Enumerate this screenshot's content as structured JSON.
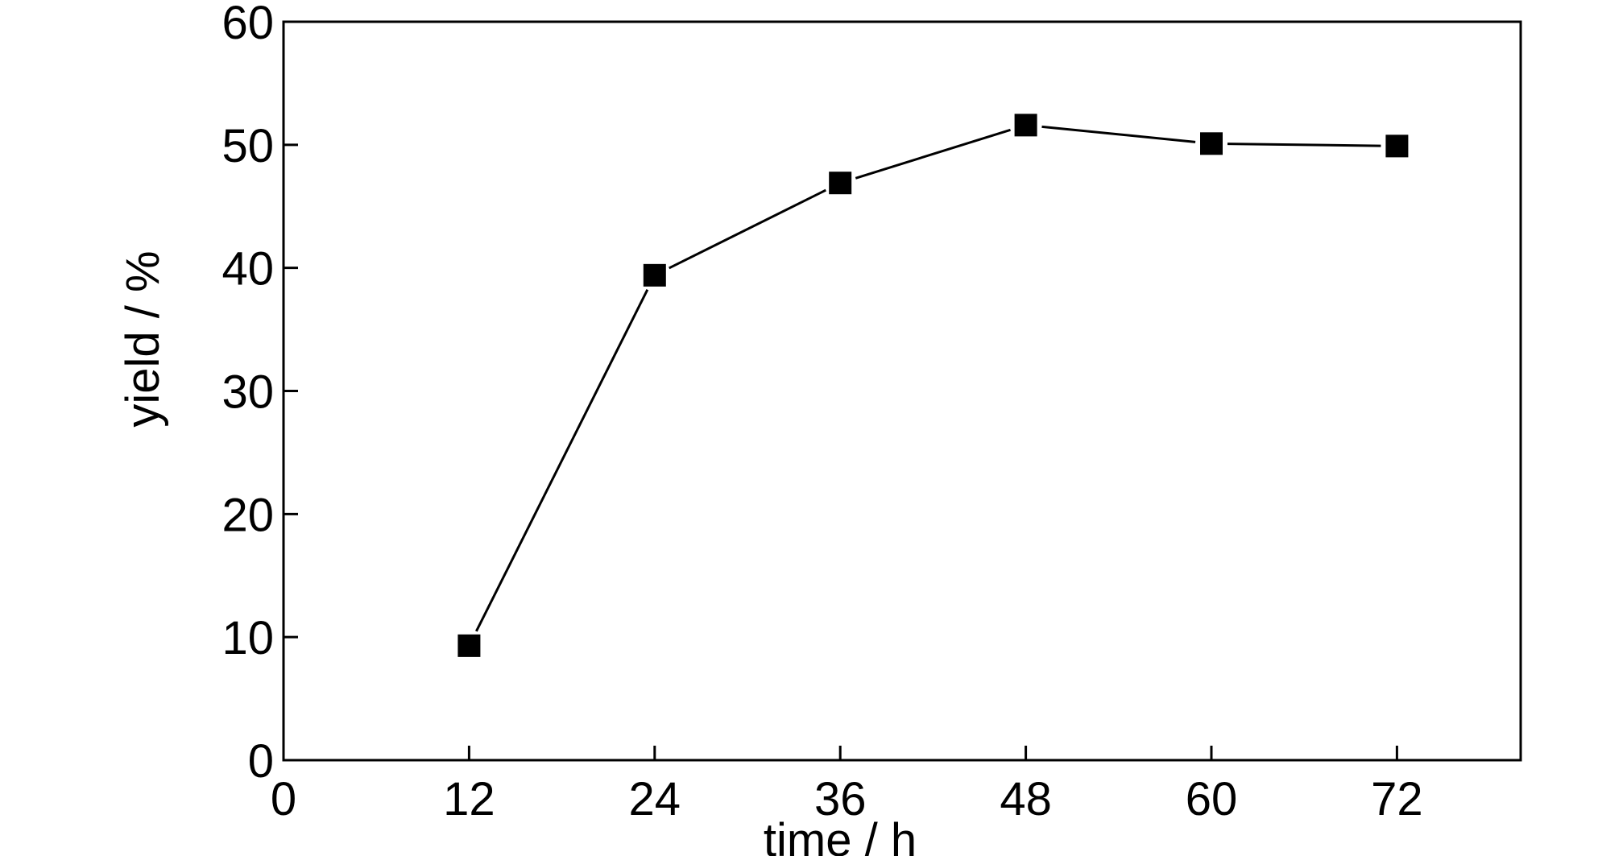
{
  "chart_data": {
    "type": "line",
    "title": "",
    "xlabel": "time / h",
    "ylabel": "yield / %",
    "xlim": [
      0,
      80
    ],
    "ylim": [
      0,
      60
    ],
    "xticks": [
      0,
      12,
      24,
      36,
      48,
      60,
      72
    ],
    "yticks": [
      0,
      10,
      20,
      30,
      40,
      50,
      60
    ],
    "grid": false,
    "series": [
      {
        "marker": "square",
        "color": "#000000",
        "x": [
          12,
          24,
          36,
          48,
          60,
          72
        ],
        "y": [
          9.3,
          39.4,
          46.9,
          51.6,
          50.1,
          49.9
        ]
      }
    ]
  }
}
